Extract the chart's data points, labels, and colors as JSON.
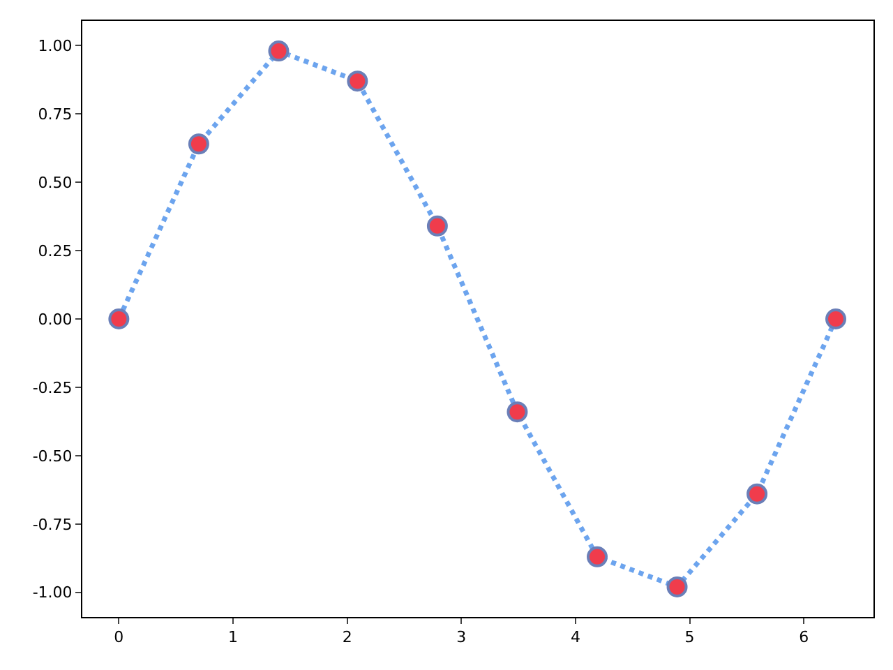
{
  "chart_data": {
    "type": "line",
    "x": [
      0,
      0.7,
      1.4,
      2.09,
      2.79,
      3.49,
      4.19,
      4.89,
      5.59,
      6.28
    ],
    "series": [
      {
        "color": "#6ca4ee",
        "colors": [
          "#f03c4c",
          "#f03c4c",
          "#f03c4c",
          "#f03c4c",
          "#f03c4c",
          "#f03c4c",
          "#f03c4c",
          "#f03c4c",
          "#f03c4c",
          "#f03c4c"
        ],
        "values": [
          0,
          0.64,
          0.98,
          0.87,
          0.34,
          -0.34,
          -0.87,
          -0.98,
          -0.64,
          0
        ]
      }
    ],
    "xlim": [
      -0.32,
      6.61
    ],
    "ylim": [
      -1.09,
      1.09
    ],
    "xticks": [
      0,
      1,
      2,
      3,
      4,
      5,
      6
    ],
    "yticks": [
      {
        "value": 1,
        "label": "1.00"
      },
      {
        "value": 0.75,
        "label": "0.75"
      },
      {
        "value": 0.5,
        "label": "0.50"
      },
      {
        "value": 0.25,
        "label": "0.25"
      },
      {
        "value": 0,
        "label": "0.00"
      },
      {
        "value": -0.25,
        "label": "-0.25"
      },
      {
        "value": -0.5,
        "label": "-0.50"
      },
      {
        "value": -0.75,
        "label": "-0.75"
      },
      {
        "value": -1,
        "label": "-1.00"
      }
    ],
    "legend": false,
    "marker": "circle",
    "line_style": "dotted"
  }
}
